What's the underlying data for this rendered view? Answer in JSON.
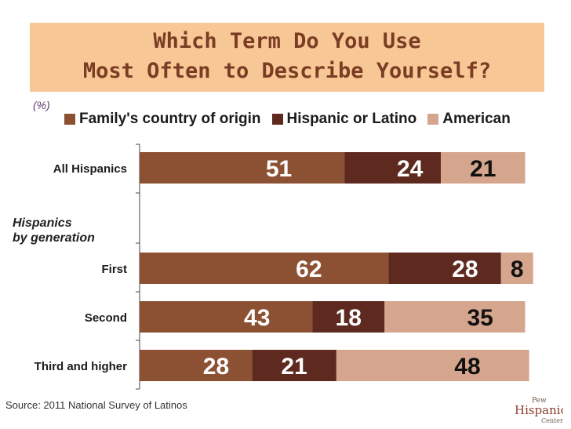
{
  "title_lines": [
    "Which Term Do You Use",
    "Most Often to Describe Yourself?"
  ],
  "unit_note": "(%)",
  "group_label_lines": [
    "Hispanics",
    "by generation"
  ],
  "source": "Source: 2011 National Survey of Latinos",
  "logo_text": [
    "Pew",
    "Hispanic",
    "Center"
  ],
  "colors": {
    "title_bg": "#f7c796",
    "title_text": "#7a3d24",
    "family": "#8c5033",
    "hispanic": "#5e2a1f",
    "american": "#d5a68d"
  },
  "chart_data": {
    "type": "bar",
    "orientation": "horizontal",
    "stacked": true,
    "categories": [
      "All Hispanics",
      "First",
      "Second",
      "Third and higher"
    ],
    "series": [
      {
        "name": "Family's country of origin",
        "values": [
          51,
          62,
          43,
          28
        ]
      },
      {
        "name": "Hispanic or Latino",
        "values": [
          24,
          28,
          18,
          21
        ]
      },
      {
        "name": "American",
        "values": [
          21,
          8,
          35,
          48
        ]
      }
    ],
    "xlim": [
      0,
      100
    ],
    "legend": "top",
    "grid": false
  }
}
